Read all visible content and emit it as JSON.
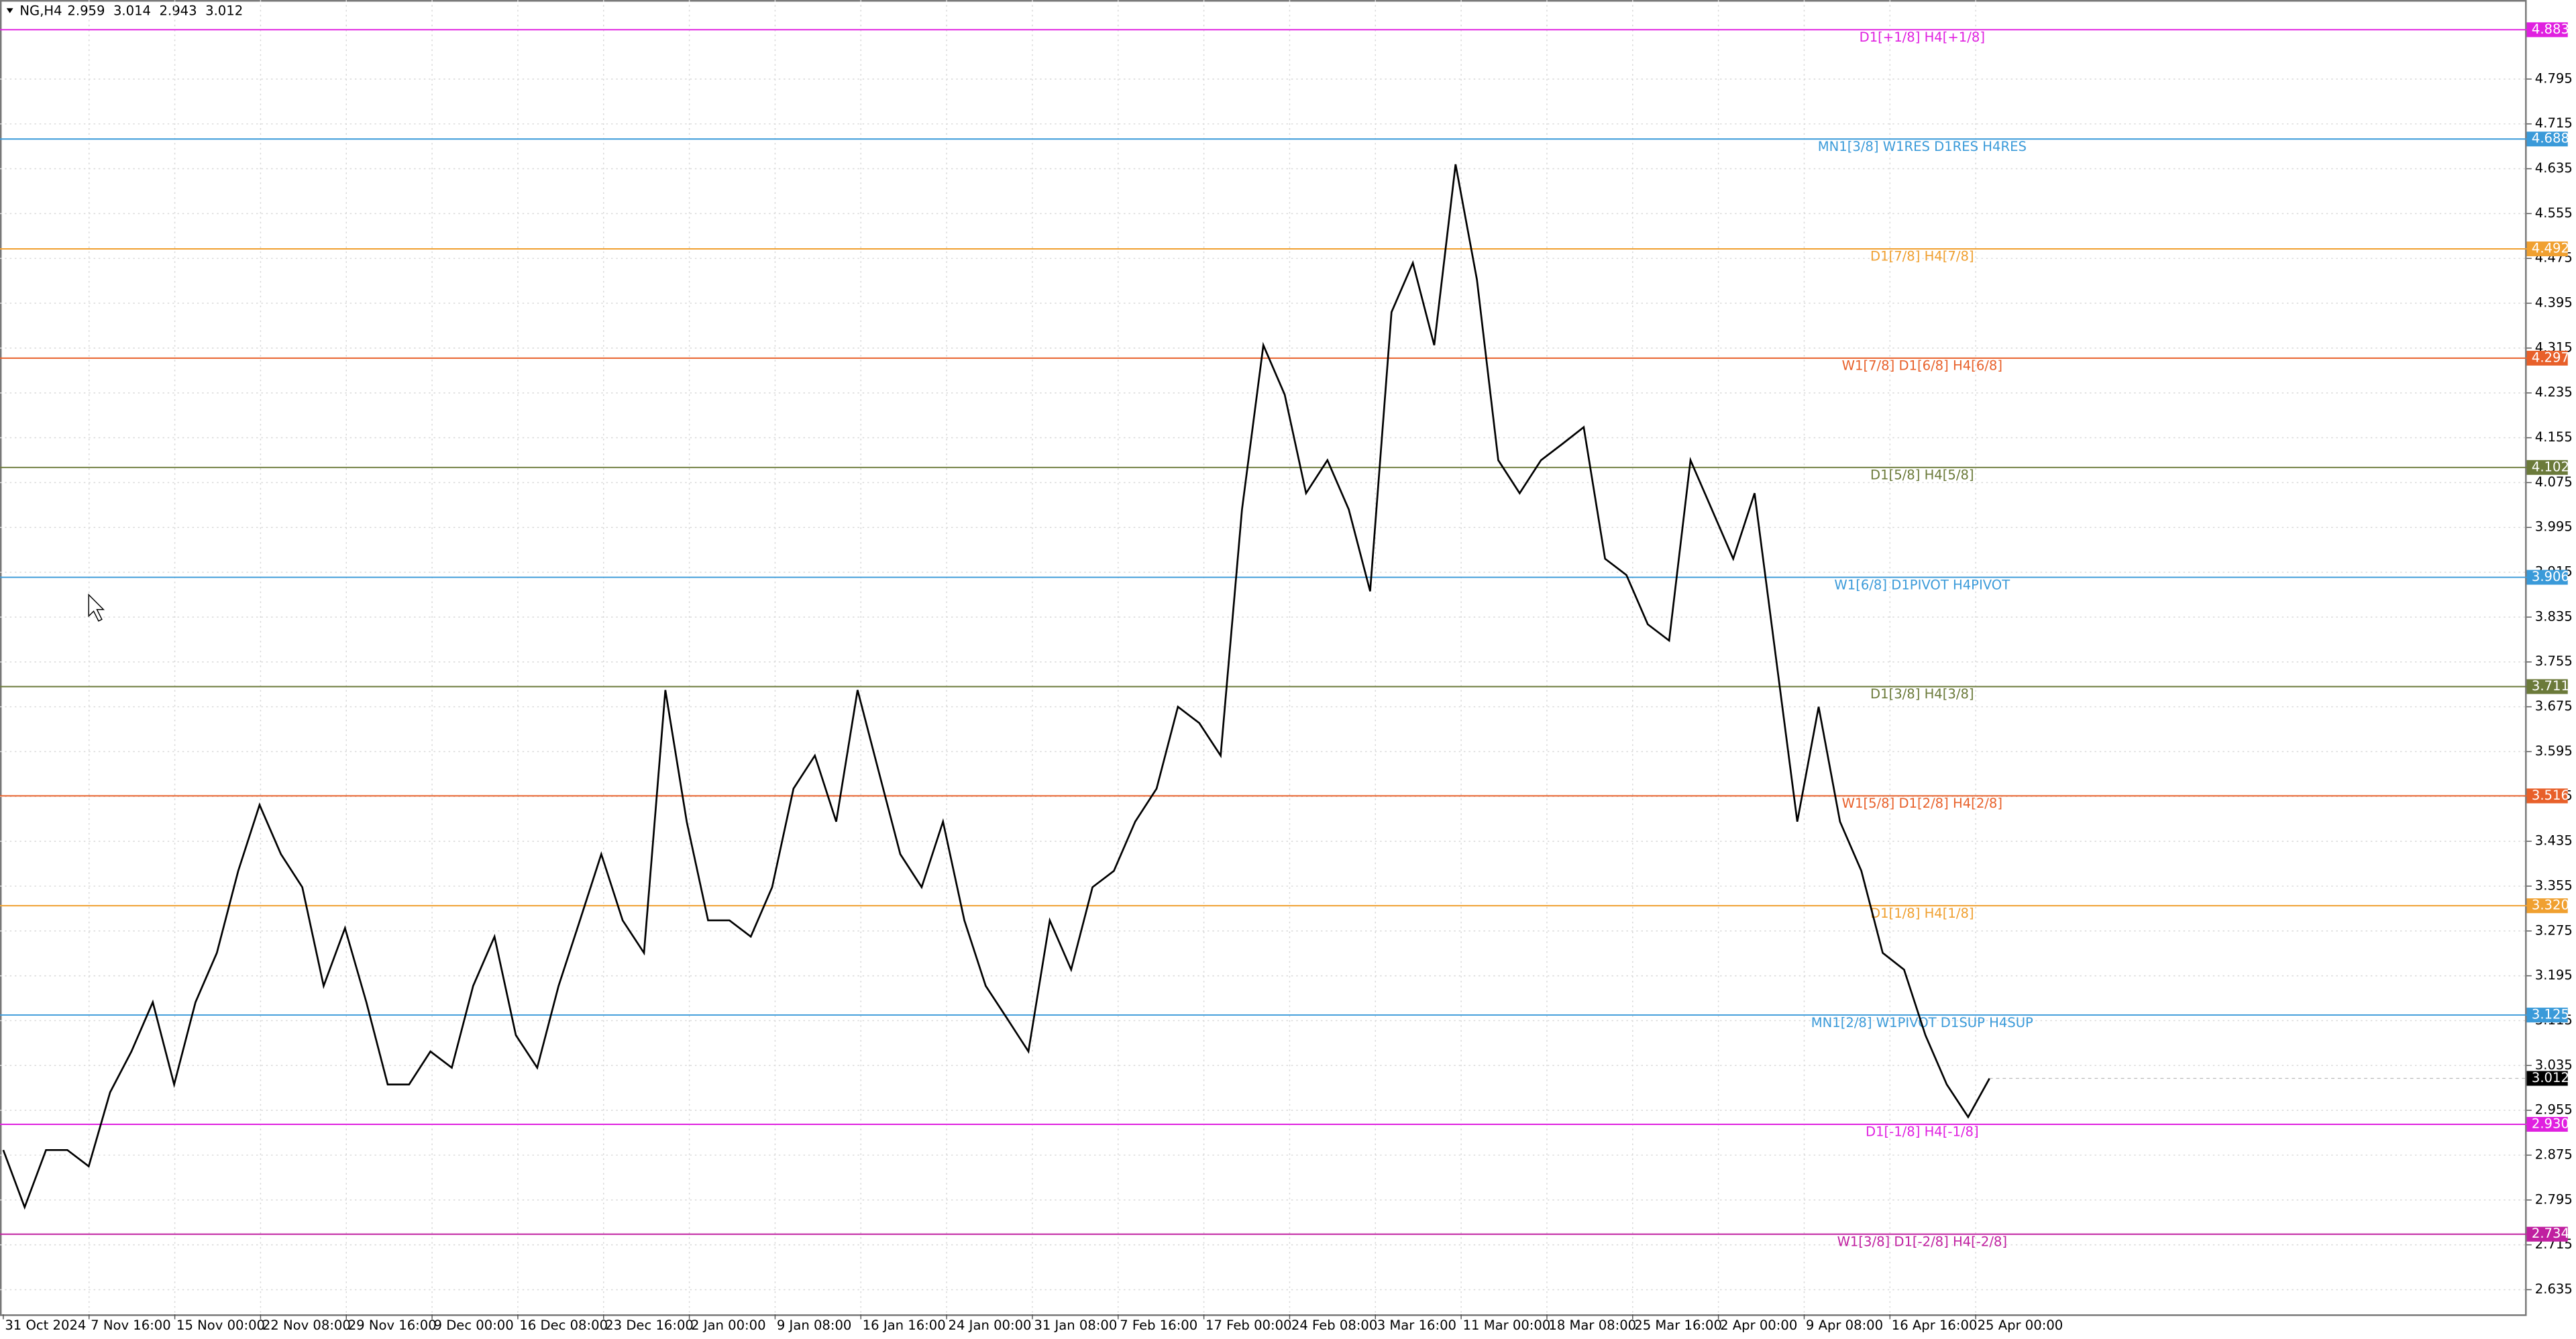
{
  "chart_data": {
    "type": "line",
    "title": "NG,H4",
    "header_values": [
      2.959,
      3.014,
      2.943,
      3.012
    ],
    "x_labels": [
      "31 Oct 2024",
      "7 Nov 16:00",
      "15 Nov 00:00",
      "22 Nov 08:00",
      "29 Nov 16:00",
      "9 Dec 00:00",
      "16 Dec 08:00",
      "23 Dec 16:00",
      "2 Jan 00:00",
      "9 Jan 08:00",
      "16 Jan 16:00",
      "24 Jan 00:00",
      "31 Jan 08:00",
      "7 Feb 16:00",
      "17 Feb 00:00",
      "24 Feb 08:00",
      "3 Mar 16:00",
      "11 Mar 00:00",
      "18 Mar 08:00",
      "25 Mar 16:00",
      "2 Apr 00:00",
      "9 Apr 08:00",
      "16 Apr 16:00",
      "25 Apr 00:00"
    ],
    "values": [
      2.884,
      2.782,
      2.884,
      2.884,
      2.855,
      2.987,
      3.06,
      3.148,
      3.001,
      3.148,
      3.236,
      3.382,
      3.5,
      3.412,
      3.353,
      3.177,
      3.28,
      3.148,
      3.001,
      3.001,
      3.06,
      3.031,
      3.177,
      3.265,
      3.089,
      3.031,
      3.177,
      3.294,
      3.412,
      3.294,
      3.236,
      3.705,
      3.47,
      3.294,
      3.294,
      3.265,
      3.353,
      3.529,
      3.588,
      3.47,
      3.705,
      3.558,
      3.412,
      3.353,
      3.47,
      3.294,
      3.177,
      3.119,
      3.06,
      3.294,
      3.206,
      3.353,
      3.382,
      3.47,
      3.529,
      3.675,
      3.646,
      3.588,
      4.027,
      4.32,
      4.232,
      4.056,
      4.115,
      4.027,
      3.881,
      4.379,
      4.467,
      4.32,
      4.643,
      4.437,
      4.115,
      4.056,
      4.115,
      4.144,
      4.174,
      3.939,
      3.91,
      3.822,
      3.793,
      4.115,
      4.027,
      3.939,
      4.056,
      3.763,
      3.47,
      3.675,
      3.47,
      3.382,
      3.236,
      3.206,
      3.089,
      3.001,
      2.943,
      3.012
    ],
    "color": "#000000",
    "ylim": [
      2.591,
      4.936
    ],
    "yticks": [
      2.635,
      2.715,
      2.795,
      2.875,
      2.955,
      3.035,
      3.115,
      3.195,
      3.275,
      3.355,
      3.435,
      3.515,
      3.595,
      3.675,
      3.755,
      3.835,
      3.915,
      3.995,
      4.075,
      4.155,
      4.235,
      4.315,
      4.395,
      4.475,
      4.555,
      4.635,
      4.715,
      4.795
    ],
    "grid": true,
    "levels": [
      {
        "label": "D1[+1/8] H4[+1/8]",
        "price": 4.883,
        "color": "#e020e0"
      },
      {
        "label": "MN1[3/8] W1RES D1RES H4RES",
        "price": 4.688,
        "color": "#3a9ad9"
      },
      {
        "label": "D1[7/8] H4[7/8]",
        "price": 4.492,
        "color": "#f0a030"
      },
      {
        "label": "W1[7/8] D1[6/8] H4[6/8]",
        "price": 4.297,
        "color": "#e8602a"
      },
      {
        "label": "D1[5/8] H4[5/8]",
        "price": 4.102,
        "color": "#6b7a3a"
      },
      {
        "label": "W1[6/8] D1PIVOT H4PIVOT",
        "price": 3.906,
        "color": "#3a9ad9"
      },
      {
        "label": "D1[3/8] H4[3/8]",
        "price": 3.711,
        "color": "#6b7a3a"
      },
      {
        "label": "W1[5/8] D1[2/8] H4[2/8]",
        "price": 3.516,
        "color": "#e8602a"
      },
      {
        "label": "D1[1/8] H4[1/8]",
        "price": {
          "value": 3.32,
          "label": "3.320"
        },
        "color": "#f0a030"
      },
      {
        "label": "MN1[2/8] W1PIVOT D1SUP H4SUP",
        "price": 3.125,
        "color": "#3a9ad9"
      },
      {
        "label": "D1[-1/8] H4[-1/8]",
        "price": {
          "value": 2.93,
          "label": "2.930"
        },
        "color": "#e020e0"
      },
      {
        "label": "W1[3/8] D1[-2/8] H4[-2/8]",
        "price": 2.734,
        "color": "#c020a0"
      }
    ],
    "current_price": 3.012
  }
}
